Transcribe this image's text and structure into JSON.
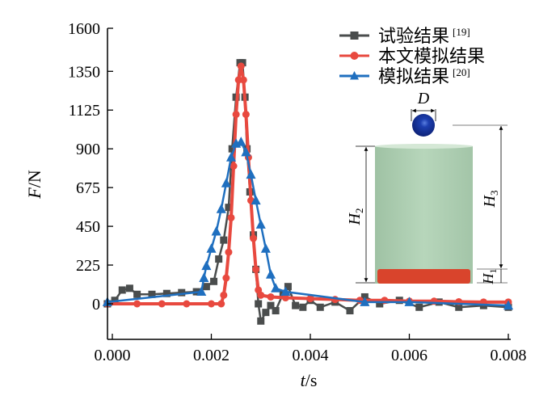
{
  "chart_data": {
    "type": "line",
    "title": "",
    "xlabel_var": "t",
    "xlabel_unit": "/s",
    "ylabel_var": "F",
    "ylabel_unit": "/N",
    "xlim": [
      -0.0001,
      0.0081
    ],
    "ylim": [
      -200,
      1600
    ],
    "xticks": [
      0,
      0.002,
      0.004,
      0.006,
      0.008
    ],
    "xtick_labels": [
      "0.000",
      "0.002",
      "0.004",
      "0.006",
      "0.008"
    ],
    "yticks": [
      0,
      225,
      450,
      675,
      900,
      1125,
      1350,
      1600
    ],
    "ytick_labels": [
      "0",
      "225",
      "450",
      "675",
      "900",
      "1125",
      "1350",
      "1600"
    ],
    "grid": false,
    "legend_position": "top-right",
    "series": [
      {
        "name": "试验结果",
        "ref": "[19]",
        "color": "#4a4d4d",
        "marker": "square",
        "x_ms": [
          -0.1,
          0.05,
          0.2,
          0.35,
          0.5,
          0.8,
          1.1,
          1.4,
          1.7,
          1.9,
          2.05,
          2.15,
          2.25,
          2.35,
          2.42,
          2.5,
          2.58,
          2.63,
          2.68,
          2.72,
          2.78,
          2.85,
          2.9,
          2.95,
          3.0,
          3.1,
          3.2,
          3.3,
          3.45,
          3.55,
          3.7,
          3.85,
          4.0,
          4.2,
          4.5,
          4.8,
          5.1,
          5.4,
          5.8,
          6.2,
          6.6,
          7.0,
          7.5,
          8.0
        ],
        "y": [
          0,
          20,
          80,
          90,
          55,
          55,
          60,
          65,
          70,
          100,
          130,
          260,
          370,
          560,
          900,
          1200,
          1400,
          1400,
          1200,
          900,
          650,
          400,
          200,
          0,
          -100,
          -50,
          -10,
          -40,
          60,
          100,
          -10,
          -20,
          20,
          -20,
          10,
          -40,
          40,
          0,
          20,
          -20,
          10,
          -20,
          -10,
          -20
        ]
      },
      {
        "name": "本文模拟结果",
        "ref": "",
        "color": "#e8493f",
        "marker": "circle",
        "x_ms": [
          -0.1,
          0.5,
          1.0,
          1.5,
          2.0,
          2.2,
          2.25,
          2.3,
          2.35,
          2.4,
          2.45,
          2.5,
          2.55,
          2.6,
          2.65,
          2.7,
          2.75,
          2.8,
          2.85,
          2.9,
          2.95,
          3.0,
          3.2,
          3.5,
          4.0,
          4.5,
          5.0,
          5.5,
          6.0,
          6.5,
          7.0,
          7.5,
          8.0
        ],
        "y": [
          0,
          0,
          0,
          0,
          0,
          0,
          50,
          150,
          300,
          500,
          800,
          1100,
          1300,
          1380,
          1300,
          1100,
          850,
          600,
          380,
          200,
          80,
          50,
          40,
          35,
          30,
          25,
          20,
          20,
          15,
          15,
          12,
          10,
          10
        ]
      },
      {
        "name": "模拟结果",
        "ref": "[20]",
        "color": "#1f6fbf",
        "marker": "triangle",
        "x_ms": [
          -0.1,
          1.8,
          1.85,
          1.9,
          2.0,
          2.1,
          2.2,
          2.3,
          2.4,
          2.5,
          2.6,
          2.7,
          2.8,
          2.9,
          3.0,
          3.1,
          3.2,
          3.3,
          3.5,
          5.1,
          6.0,
          8.0
        ],
        "y": [
          10,
          70,
          150,
          220,
          320,
          420,
          550,
          700,
          850,
          930,
          940,
          880,
          750,
          600,
          460,
          320,
          170,
          90,
          70,
          10,
          10,
          -10
        ]
      }
    ]
  },
  "inset": {
    "label_d": "D",
    "label_h1": "H",
    "sub_h1": "1",
    "label_h2": "H",
    "sub_h2": "2",
    "label_h3": "H",
    "sub_h3": "3"
  }
}
